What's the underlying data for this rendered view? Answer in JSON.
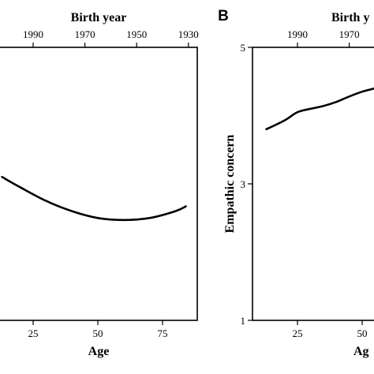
{
  "chart_data": [
    {
      "type": "line",
      "panel_label": "",
      "xlabel": "Age",
      "top_xlabel": "Birth year",
      "ylabel": "",
      "x_ticks": [
        25,
        50,
        75
      ],
      "top_ticks": [
        1990,
        1970,
        1950,
        1930
      ],
      "y_ticks": [],
      "series": [
        {
          "x": [
            13,
            20,
            30,
            40,
            50,
            60,
            70,
            80,
            84
          ],
          "y": [
            3.1,
            2.95,
            2.75,
            2.6,
            2.5,
            2.47,
            2.5,
            2.6,
            2.67
          ]
        }
      ]
    },
    {
      "type": "line",
      "panel_label": "B",
      "xlabel": "Ag",
      "top_xlabel": "Birth y",
      "ylabel": "Empathic concern",
      "x_ticks": [
        25,
        50
      ],
      "top_ticks": [
        1990,
        1970
      ],
      "y_ticks": [
        1,
        3,
        5
      ],
      "ylim": [
        1,
        5
      ],
      "series": [
        {
          "x": [
            13,
            20,
            25,
            30,
            35,
            40,
            45,
            50,
            55
          ],
          "y": [
            3.8,
            3.93,
            4.05,
            4.1,
            4.14,
            4.2,
            4.28,
            4.35,
            4.4
          ]
        }
      ]
    }
  ]
}
